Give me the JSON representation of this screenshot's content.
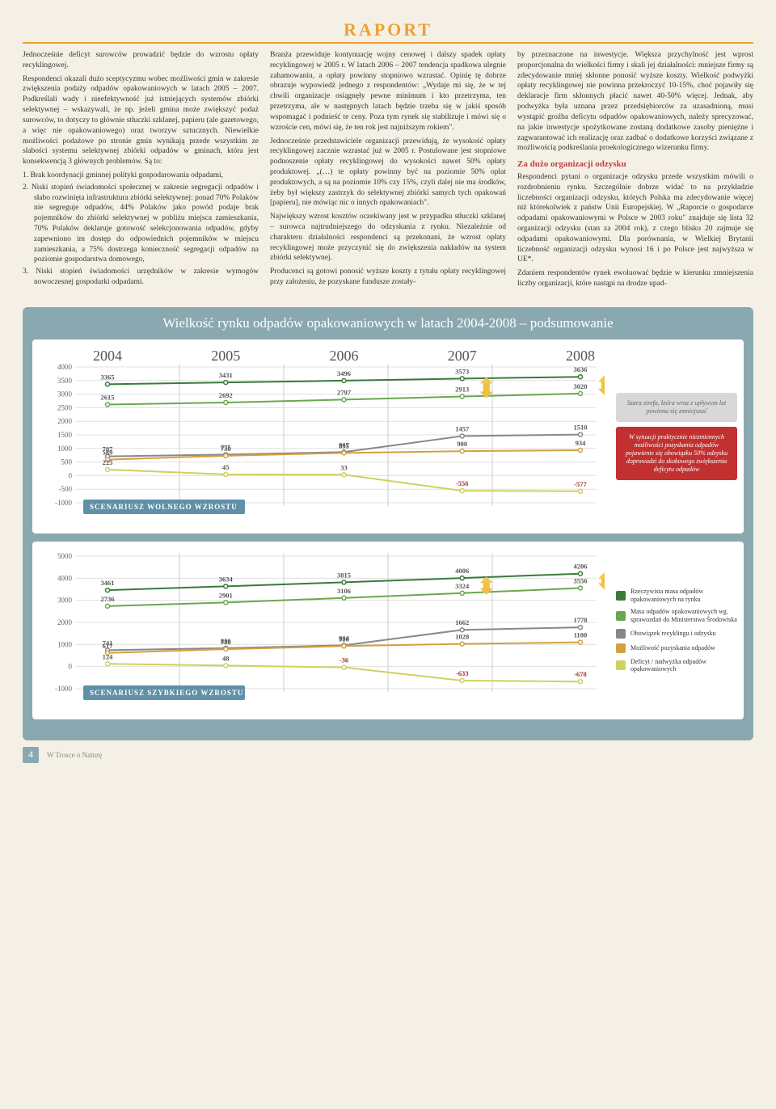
{
  "header_tag": "RAPORT",
  "col1": {
    "p1": "Jednocześnie deficyt surowców prowadzić będzie do wzrostu opłaty recyklingowej.",
    "p2": "Respondenci okazali dużo sceptycyzmu wobec możliwości gmin w zakresie zwiększenia podaży odpadów opakowaniowych w latach 2005 – 2007. Podkreślali wady i nieefektywność już istniejących systemów zbiórki selektywnej – wskazywali, że np. jeżeli gmina może zwiększyć podaż surowców, to dotyczy to głównie stłuczki szklanej, papieru (ale gazetowego, a więc nie opakowaniowego) oraz tworzyw sztucznych. Niewielkie możliwości podażowe po stronie gmin wynikają przede wszystkim ze słabości systemu selektywnej zbiórki odpadów w gminach, która jest konsekwencją 3 głównych problemów. Są to:",
    "li1": "1. Brak koordynacji gminnej polityki gospodarowania odpadami,",
    "li2": "2. Niski stopień świadomości społecznej w zakresie segregacji odpadów i słabo rozwinięta infrastruktura zbiórki selektywnej: ponad 70% Polaków nie segreguje odpadów, 44% Polaków jako powód podaje brak pojemników do zbiórki selektywnej w pobliżu miejsca zamieszkania, 70% Polaków deklaruje gotowość selekcjonowania odpadów, gdyby zapewniono im dostęp do odpowiednich pojemników w miejscu zamieszkania, a 75% dostrzega konieczność segregacji odpadów na poziomie gospodarstwa domowego,",
    "li3": "3. Niski stopień świadomości urzędników w zakresie wymogów nowoczesnej gospodarki odpadami."
  },
  "col2": {
    "p1": "Branża przewiduje kontynuację wojny cenowej i dalszy spadek opłaty recyklingowej w 2005 r. W latach 2006 – 2007 tendencja spadkowa ulegnie zahamowaniu, a opłaty powinny stopniowo wzrastać. Opinię tę dobrze obrazuje wypowiedź jednego z respondentów: „Wydaje mi się, że w tej chwili organizacje osiągnęły pewne minimum i kto przetrzyma, ten przetrzyma, ale w następnych latach będzie trzeba się w jakiś sposób wspomagać i podnieść te ceny. Poza tym rynek się stabilizuje i mówi się o wzroście cen, mówi się, że ten rok jest najniższym rokiem\".",
    "p2": "Jednocześnie przedstawiciele organizacji przewidują, że wysokość opłaty recyklingowej zacznie wzrastać już w 2005 r. Postulowane jest stopniowe podnoszenie opłaty recyklingowej do wysokości nawet 50% opłaty produktowej. „(…) te opłaty powinny być na poziomie 50% opłat produktowych, a są na poziomie 10% czy 15%, czyli dalej nie ma środków, żeby był większy zastrzyk do selektywnej zbiórki samych tych opakowań [papieru], nie mówiąc nic o innych opakowaniach\".",
    "p3": "Największy wzrost kosztów oczekiwany jest w przypadku stłuczki szklanej – surowca najtrudniejszego do odzyskania z rynku. Niezależnie od charakteru działalności respondenci są przekonani, że wzrost opłaty recyklingowej może przyczynić się do zwiększenia nakładów na system zbiórki selektywnej.",
    "p4": "Producenci są gotowi ponosić wyższe koszty z tytułu opłaty recyklingowej przy założeniu, że pozyskane fundusze zostały-"
  },
  "col3": {
    "p1": "by przeznaczone na inwestycje. Większa przychylność jest wprost proporcjonalna do wielkości firmy i skali jej działalności: mniejsze firmy są zdecydowanie mniej skłonne ponosić wyższe koszty. Wielkość podwyżki opłaty recyklingowej nie powinna przekroczyć 10-15%, choć pojawiły się deklaracje firm skłonnych płacić nawet 40-50% więcej. Jednak, aby podwyżka była uznana przez przedsiębiorców za uzasadnioną, musi wystąpić groźba deficytu odpadów opakowaniowych, należy sprecyzować, na jakie inwestycje spożytkowane zostaną dodatkowe zasoby pieniężne i zagwarantować ich realizację oraz zadbać o dodatkowe korzyści związane z możliwością podkreślania proekologicznego wizerunku firmy.",
    "sub": "Za dużo organizacji odzysku",
    "p2": "Respondenci pytani o organizacje odzysku przede wszystkim mówili o rozdrobnieniu rynku. Szczególnie dobrze widać to na przykładzie liczebności organizacji odzysku, których Polska ma zdecydowanie więcej niż którekolwiek z państw Unii Europejskiej. W „Raporcie o gospodarce odpadami opakowaniowymi w Polsce w 2003 roku\" znajduje się lista 32 organizacji odzysku (stan za 2004 rok), z czego blisko 20 zajmuje się odpadami opakowaniowymi. Dla porównania, w Wielkiej Brytanii liczebność organizacji odzysku wynosi 16 i po Polsce jest najwyższa w UE*.",
    "p3": "Zdaniem respondentów rynek ewoluować będzie w kierunku zmniejszenia liczby organizacji, które nastąpi na drodze upad-"
  },
  "panel_title": "Wielkość rynku odpadów opakowaniowych w latach 2004-2008 – podsumowanie",
  "chart1": {
    "years": [
      "2004",
      "2005",
      "2006",
      "2007",
      "2008"
    ],
    "ymin": -1000,
    "ymax": 4000,
    "ystep": 500,
    "series": [
      {
        "c": "#3a7a3a",
        "v": [
          3365,
          3431,
          3496,
          3573,
          3636
        ]
      },
      {
        "c": "#6aa84f",
        "v": [
          2615,
          2692,
          2797,
          2913,
          3020
        ]
      },
      {
        "c": "#888888",
        "v": [
          707,
          775,
          867,
          1457,
          1510
        ]
      },
      {
        "c": "#d4a040",
        "v": [
          589,
          730,
          835,
          900,
          934
        ]
      },
      {
        "c": "#d0d060",
        "v": [
          225,
          45,
          33,
          -556,
          -577
        ]
      }
    ],
    "scenario": "SCENARIUSZ WOLNEGO WZROSTU",
    "legend_gray": "Szara strefa, która wraz z upływem lat powinna się zmniejszać",
    "legend_red": "W sytuacji praktycznie niezmiennych możliwości pozyskania odpadów pojawienie się obowiązku 50% odzysku doprowadzi do skokowego zwiększenia deficytu odpadów"
  },
  "chart2": {
    "ymin": -1000,
    "ymax": 5000,
    "ystep": 1000,
    "series": [
      {
        "c": "#3a7a3a",
        "v": [
          3461,
          3634,
          3815,
          4006,
          4206
        ]
      },
      {
        "c": "#6aa84f",
        "v": [
          2736,
          2901,
          3106,
          3324,
          3556
        ]
      },
      {
        "c": "#888888",
        "v": [
          741,
          836,
          964,
          1662,
          1778
        ]
      },
      {
        "c": "#d4a040",
        "v": [
          617,
          788,
          928,
          1028,
          1100
        ]
      },
      {
        "c": "#d0d060",
        "v": [
          124,
          48,
          -36,
          -633,
          -678
        ]
      }
    ],
    "scenario": "SCENARIUSZ SZYBKIEGO WZROSTU",
    "legend": [
      {
        "c": "#3a7a3a",
        "t": "Rzeczywista masa odpadów opakowaniowych na rynku"
      },
      {
        "c": "#6aa84f",
        "t": "Masa odpadów opakowaniowych wg. sprawozdań do Ministerstwa Środowiska"
      },
      {
        "c": "#888888",
        "t": "Obowiązek recyklingu i odzysku"
      },
      {
        "c": "#d4a040",
        "t": "Możliwość pozyskania odpadów"
      },
      {
        "c": "#d0d060",
        "t": "Deficyt / nadwyżka odpadów opakowaniowych"
      }
    ]
  },
  "footer_text": "W Trosce o Naturę",
  "page_num": "4"
}
